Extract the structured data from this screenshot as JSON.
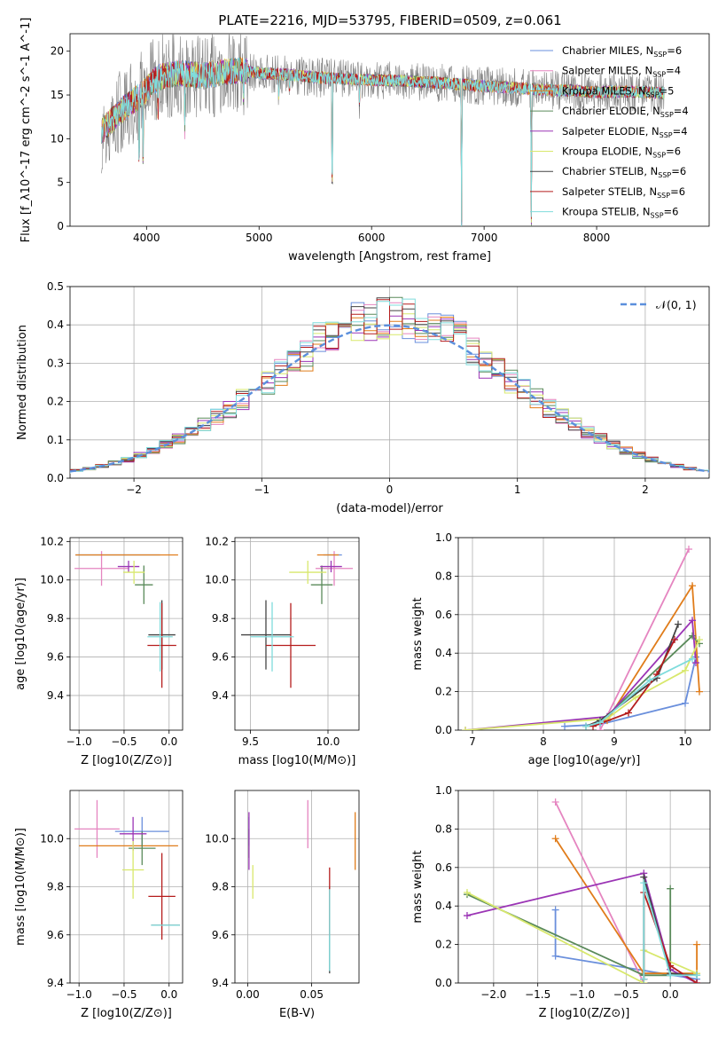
{
  "title": "PLATE=2216, MJD=53795, FIBERID=0509, z=0.061",
  "models": [
    {
      "name": "Chabrier MILES",
      "nssp": "6",
      "color": "#6a8fdc"
    },
    {
      "name": "Salpeter MILES",
      "nssp": "4",
      "color": "#e585c0"
    },
    {
      "name": "Kroupa MILES",
      "nssp": "5",
      "color": "#e07c1a"
    },
    {
      "name": "Chabrier ELODIE",
      "nssp": "4",
      "color": "#5a8a5a"
    },
    {
      "name": "Salpeter ELODIE",
      "nssp": "4",
      "color": "#9b35b5"
    },
    {
      "name": "Kroupa ELODIE",
      "nssp": "6",
      "color": "#d8e86c"
    },
    {
      "name": "Chabrier STELIB",
      "nssp": "6",
      "color": "#444444"
    },
    {
      "name": "Salpeter STELIB",
      "nssp": "6",
      "color": "#b51d1d"
    },
    {
      "name": "Kroupa STELIB",
      "nssp": "6",
      "color": "#7fdcdc"
    }
  ],
  "chart_data": [
    {
      "id": "spectrum",
      "type": "line",
      "xlabel": "wavelength [Angstrom, rest frame]",
      "ylabel": "Flux [f_λ10^-17 erg cm^-2 s^-1 A^-1]",
      "xlim": [
        3320,
        9000
      ],
      "ylim": [
        0,
        22
      ],
      "xticks": [
        4000,
        5000,
        6000,
        7000,
        8000
      ],
      "yticks": [
        0,
        5,
        10,
        15,
        20
      ],
      "continuum_x": [
        3600,
        3800,
        3950,
        4100,
        4300,
        4500,
        4800,
        5000,
        5300,
        5500,
        5800,
        6000,
        6300,
        6500,
        6800,
        7000,
        7300,
        7500,
        7800,
        8000,
        8300,
        8600
      ],
      "continuum_y": [
        11,
        13.5,
        15,
        17,
        17.5,
        17.2,
        17.8,
        17.5,
        17.3,
        17,
        16.8,
        16.7,
        16.6,
        16.5,
        16.2,
        16,
        15.8,
        15.6,
        15.5,
        15.3,
        15.4,
        15.2
      ],
      "absorption_lines": [
        {
          "x": 3934,
          "depth": 9
        },
        {
          "x": 3969,
          "depth": 8
        },
        {
          "x": 4102,
          "depth": 5
        },
        {
          "x": 4340,
          "depth": 6
        },
        {
          "x": 4861,
          "depth": 3
        },
        {
          "x": 5175,
          "depth": 3
        },
        {
          "x": 5270,
          "depth": 2
        },
        {
          "x": 5650,
          "depth": 17
        },
        {
          "x": 5893,
          "depth": 3
        },
        {
          "x": 6800,
          "depth": 16
        },
        {
          "x": 7420,
          "depth": 15
        }
      ],
      "grid": false,
      "legend": "top-right"
    },
    {
      "id": "residuals",
      "type": "line",
      "xlabel": "(data-model)/error",
      "ylabel": "Normed distribution",
      "xlim": [
        -2.5,
        2.5
      ],
      "ylim": [
        0,
        0.5
      ],
      "xticks": [
        -2,
        -1,
        0,
        1,
        2
      ],
      "yticks": [
        0.0,
        0.1,
        0.2,
        0.3,
        0.4,
        0.5
      ],
      "reference_label": "𝒩(0, 1)",
      "bin_width": 0.1,
      "grid": true,
      "legend": "top-right"
    },
    {
      "id": "age_vs_z",
      "type": "scatter",
      "xlabel": "Z [log10(Z/Z⊙)]",
      "ylabel": "age  [log10(age/yr)]",
      "xlim": [
        -1.1,
        0.15
      ],
      "ylim": [
        9.22,
        10.22
      ],
      "xticks": [
        -1.0,
        -0.5,
        0.0
      ],
      "xticklabels": [
        "−1.0",
        "−0.5",
        "0.0"
      ],
      "yticks": [
        9.4,
        9.6,
        9.8,
        10.0,
        10.2
      ],
      "points": [
        {
          "m": 0,
          "x": -0.57,
          "xerr": 0.47,
          "y": 10.13,
          "yerr": 0.0
        },
        {
          "m": 1,
          "x": -0.75,
          "xerr": 0.3,
          "y": 10.06,
          "yerr": 0.09
        },
        {
          "m": 2,
          "x": -0.47,
          "xerr": 0.57,
          "y": 10.13,
          "yerr": 0.0
        },
        {
          "m": 3,
          "x": -0.28,
          "xerr": 0.1,
          "y": 9.975,
          "yerr": 0.1
        },
        {
          "m": 4,
          "x": -0.45,
          "xerr": 0.12,
          "y": 10.07,
          "yerr": 0.03
        },
        {
          "m": 5,
          "x": -0.39,
          "xerr": 0.12,
          "y": 10.04,
          "yerr": 0.06
        },
        {
          "m": 6,
          "x": -0.08,
          "xerr": 0.15,
          "y": 9.715,
          "yerr": 0.18
        },
        {
          "m": 7,
          "x": -0.08,
          "xerr": 0.16,
          "y": 9.66,
          "yerr": 0.22
        },
        {
          "m": 8,
          "x": -0.1,
          "xerr": 0.14,
          "y": 9.705,
          "yerr": 0.18
        }
      ]
    },
    {
      "id": "age_vs_mass",
      "type": "scatter",
      "xlabel": "mass [log10(M/M⊙)]",
      "ylabel": "",
      "xlim": [
        9.4,
        10.2
      ],
      "ylim": [
        9.22,
        10.22
      ],
      "xticks": [
        9.5,
        10.0
      ],
      "yticks": [
        9.4,
        9.6,
        9.8,
        10.0,
        10.2
      ],
      "points": [
        {
          "m": 0,
          "x": 10.03,
          "xerr": 0.06,
          "y": 10.13,
          "yerr": 0.0
        },
        {
          "m": 1,
          "x": 10.04,
          "xerr": 0.12,
          "y": 10.06,
          "yerr": 0.09
        },
        {
          "m": 2,
          "x": 10.0,
          "xerr": 0.07,
          "y": 10.13,
          "yerr": 0.0
        },
        {
          "m": 3,
          "x": 9.96,
          "xerr": 0.07,
          "y": 9.975,
          "yerr": 0.1
        },
        {
          "m": 4,
          "x": 10.02,
          "xerr": 0.07,
          "y": 10.07,
          "yerr": 0.03
        },
        {
          "m": 5,
          "x": 9.87,
          "xerr": 0.12,
          "y": 10.04,
          "yerr": 0.06
        },
        {
          "m": 6,
          "x": 9.6,
          "xerr": 0.16,
          "y": 9.715,
          "yerr": 0.18
        },
        {
          "m": 7,
          "x": 9.76,
          "xerr": 0.16,
          "y": 9.66,
          "yerr": 0.22
        },
        {
          "m": 8,
          "x": 9.64,
          "xerr": 0.14,
          "y": 9.705,
          "yerr": 0.18
        }
      ]
    },
    {
      "id": "weight_vs_age",
      "type": "line",
      "xlabel": "age  [log10(age/yr)]",
      "ylabel": "mass weight",
      "xlim": [
        6.8,
        10.35
      ],
      "ylim": [
        0,
        1
      ],
      "xticks": [
        7,
        8,
        9,
        10
      ],
      "yticks": [
        0.0,
        0.2,
        0.4,
        0.6,
        0.8,
        1.0
      ],
      "series": [
        {
          "m": 0,
          "x": [
            8.3,
            8.8,
            10.0,
            10.15
          ],
          "y": [
            0.02,
            0.03,
            0.14,
            0.38
          ]
        },
        {
          "m": 1,
          "x": [
            8.8,
            10.05
          ],
          "y": [
            0.0,
            0.94
          ]
        },
        {
          "m": 2,
          "x": [
            8.9,
            10.1,
            10.2
          ],
          "y": [
            0.05,
            0.75,
            0.2
          ]
        },
        {
          "m": 3,
          "x": [
            8.8,
            10.1,
            10.2
          ],
          "y": [
            0.04,
            0.49,
            0.45
          ]
        },
        {
          "m": 4,
          "x": [
            6.9,
            8.9,
            10.1,
            10.15
          ],
          "y": [
            0.0,
            0.07,
            0.57,
            0.35
          ]
        },
        {
          "m": 5,
          "x": [
            6.9,
            8.9,
            9.3,
            10.0,
            10.2
          ],
          "y": [
            0.0,
            0.06,
            0.17,
            0.31,
            0.47
          ]
        },
        {
          "m": 6,
          "x": [
            8.6,
            8.8,
            9.6,
            9.9
          ],
          "y": [
            0.02,
            0.05,
            0.27,
            0.55
          ]
        },
        {
          "m": 7,
          "x": [
            8.7,
            9.2,
            9.6,
            9.85
          ],
          "y": [
            0.02,
            0.09,
            0.29,
            0.47
          ]
        },
        {
          "m": 8,
          "x": [
            8.6,
            8.8,
            9.5,
            10.1
          ],
          "y": [
            0.02,
            0.04,
            0.26,
            0.37
          ]
        }
      ]
    },
    {
      "id": "mass_vs_z",
      "type": "scatter",
      "xlabel": "Z [log10(Z/Z⊙)]",
      "ylabel": "mass [log10(M/M⊙)]",
      "xlim": [
        -1.1,
        0.15
      ],
      "ylim": [
        9.4,
        10.2
      ],
      "xticks": [
        -1.0,
        -0.5,
        0.0
      ],
      "xticklabels": [
        "−1.0",
        "−0.5",
        "0.0"
      ],
      "yticks": [
        9.4,
        9.6,
        9.8,
        10.0
      ],
      "points": [
        {
          "m": 0,
          "x": -0.3,
          "xerr": 0.3,
          "y": 10.03,
          "yerr": 0.06
        },
        {
          "m": 1,
          "x": -0.8,
          "xerr": 0.25,
          "y": 10.04,
          "yerr": 0.12
        },
        {
          "m": 2,
          "x": -0.45,
          "xerr": 0.55,
          "y": 9.97,
          "yerr": 0.0
        },
        {
          "m": 3,
          "x": -0.3,
          "xerr": 0.15,
          "y": 9.96,
          "yerr": 0.07
        },
        {
          "m": 4,
          "x": -0.4,
          "xerr": 0.15,
          "y": 10.02,
          "yerr": 0.07
        },
        {
          "m": 5,
          "x": -0.4,
          "xerr": 0.12,
          "y": 9.87,
          "yerr": 0.12
        },
        {
          "m": 6,
          "x": -0.04,
          "xerr": 0.16,
          "y": 9.64,
          "yerr": 0.0
        },
        {
          "m": 7,
          "x": -0.08,
          "xerr": 0.15,
          "y": 9.76,
          "yerr": 0.18
        },
        {
          "m": 8,
          "x": -0.04,
          "xerr": 0.16,
          "y": 9.64,
          "yerr": 0.0
        }
      ]
    },
    {
      "id": "mass_vs_ebv",
      "type": "scatter",
      "xlabel": "E(B-V)",
      "ylabel": "",
      "xlim": [
        -0.01,
        0.087
      ],
      "ylim": [
        9.4,
        10.2
      ],
      "xticks": [
        0.0,
        0.05
      ],
      "xticklabels": [
        "0.00",
        "0.05"
      ],
      "yticks": [
        9.4,
        9.6,
        9.8,
        10.0
      ],
      "points": [
        {
          "m": 0,
          "x": 0.001,
          "xerr": 0,
          "y": 10.03,
          "yerr": 0.06
        },
        {
          "m": 1,
          "x": 0.047,
          "xerr": 0,
          "y": 10.06,
          "yerr": 0.1
        },
        {
          "m": 2,
          "x": 0.084,
          "xerr": 0,
          "y": 9.99,
          "yerr": 0.12
        },
        {
          "m": 3,
          "x": 0.001,
          "xerr": 0,
          "y": 9.98,
          "yerr": 0.06
        },
        {
          "m": 4,
          "x": 0.001,
          "xerr": 0,
          "y": 9.99,
          "yerr": 0.12
        },
        {
          "m": 5,
          "x": 0.004,
          "xerr": 0,
          "y": 9.82,
          "yerr": 0.07
        },
        {
          "m": 6,
          "x": 0.064,
          "xerr": 0,
          "y": 9.62,
          "yerr": 0.18
        },
        {
          "m": 7,
          "x": 0.064,
          "xerr": 0,
          "y": 9.74,
          "yerr": 0.14
        },
        {
          "m": 8,
          "x": 0.064,
          "xerr": 0,
          "y": 9.62,
          "yerr": 0.17
        }
      ]
    },
    {
      "id": "weight_vs_z",
      "type": "line",
      "xlabel": "Z [log10(Z/Z⊙)]",
      "ylabel": "mass weight",
      "xlim": [
        -2.4,
        0.45
      ],
      "ylim": [
        0,
        1
      ],
      "xticks": [
        -2.0,
        -1.5,
        -1.0,
        -0.5,
        0.0
      ],
      "xticklabels": [
        "−2.0",
        "−1.5",
        "−1.0",
        "−0.5",
        "0.0"
      ],
      "yticks": [
        0.0,
        0.2,
        0.4,
        0.6,
        0.8,
        1.0
      ],
      "series": [
        {
          "m": 0,
          "x": [
            -1.3,
            -1.3,
            0.3,
            0.3
          ],
          "y": [
            0.38,
            0.14,
            0.02,
            0.0
          ]
        },
        {
          "m": 1,
          "x": [
            -1.3,
            -0.3
          ],
          "y": [
            0.94,
            0.0
          ]
        },
        {
          "m": 2,
          "x": [
            -1.3,
            -0.3,
            0.3,
            0.3
          ],
          "y": [
            0.75,
            0.05,
            0.05,
            0.2
          ]
        },
        {
          "m": 3,
          "x": [
            -2.3,
            -0.3,
            0.0,
            0.0
          ],
          "y": [
            0.46,
            0.04,
            0.04,
            0.49
          ]
        },
        {
          "m": 4,
          "x": [
            -2.3,
            -0.3,
            0.0,
            0.3
          ],
          "y": [
            0.35,
            0.57,
            0.07,
            0.0
          ]
        },
        {
          "m": 5,
          "x": [
            -2.3,
            -0.3,
            -0.3,
            0.3
          ],
          "y": [
            0.47,
            0.0,
            0.17,
            0.05
          ]
        },
        {
          "m": 6,
          "x": [
            -0.3,
            -0.3,
            0.0,
            0.3
          ],
          "y": [
            0.02,
            0.55,
            0.05,
            0.04
          ]
        },
        {
          "m": 7,
          "x": [
            -0.3,
            -0.3,
            0.0,
            0.3
          ],
          "y": [
            0.02,
            0.47,
            0.09,
            0.0
          ]
        },
        {
          "m": 8,
          "x": [
            -0.3,
            -0.3,
            0.0,
            0.3
          ],
          "y": [
            0.02,
            0.52,
            0.04,
            0.04
          ]
        }
      ]
    }
  ]
}
